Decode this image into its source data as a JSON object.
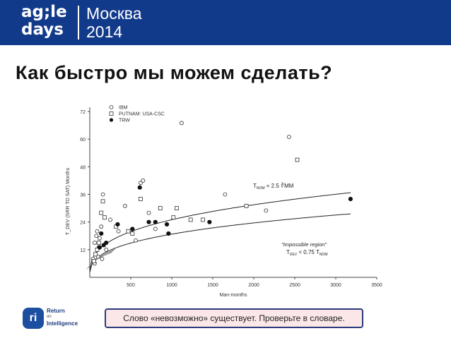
{
  "header": {
    "logo_line1": "ag;le",
    "logo_line2": "days",
    "city": "Москва",
    "year": "2014"
  },
  "slide": {
    "title": "Как быстро мы можем сделать?",
    "note": "Слово «невозможно» существует. Проверьте в словаре."
  },
  "brand": {
    "logo_mark": "ri",
    "name_line1": "Return",
    "name_line2": "on",
    "name_line3": "Intelligence"
  },
  "colors": {
    "header_bg": "#123a8a",
    "note_bg": "#fbe7e7"
  },
  "chart_data": {
    "type": "scatter",
    "xlabel": "Man-months",
    "ylabel": "T_DEV (SRR TO SAT) Months",
    "xlim": [
      0,
      3500
    ],
    "ylim": [
      0,
      72
    ],
    "xticks": [
      500,
      1000,
      1500,
      2000,
      2500,
      3000,
      3500
    ],
    "yticks": [
      12,
      24,
      36,
      48,
      60,
      72
    ],
    "grid": false,
    "legend_position": "top-left",
    "series": [
      {
        "name": "IBM",
        "marker": "open-circle",
        "points": [
          [
            1120,
            67
          ],
          [
            2430,
            61
          ],
          [
            620,
            41
          ],
          [
            650,
            42
          ],
          [
            160,
            36
          ],
          [
            430,
            31
          ],
          [
            720,
            28
          ],
          [
            800,
            21
          ],
          [
            1650,
            36
          ],
          [
            2150,
            29
          ],
          [
            60,
            15
          ],
          [
            80,
            18
          ],
          [
            90,
            20
          ],
          [
            110,
            13
          ],
          [
            120,
            17
          ],
          [
            140,
            22
          ],
          [
            200,
            12
          ],
          [
            250,
            25
          ],
          [
            350,
            20
          ],
          [
            560,
            16
          ],
          [
            40,
            8
          ],
          [
            60,
            6
          ],
          [
            100,
            9
          ],
          [
            150,
            8
          ]
        ]
      },
      {
        "name": "PUTNAM: USA-CSC",
        "marker": "open-square",
        "points": [
          [
            2530,
            51
          ],
          [
            620,
            34
          ],
          [
            860,
            30
          ],
          [
            1020,
            26
          ],
          [
            1060,
            30
          ],
          [
            1230,
            25
          ],
          [
            1380,
            25
          ],
          [
            1910,
            31
          ],
          [
            320,
            22
          ],
          [
            470,
            20
          ],
          [
            520,
            19
          ],
          [
            140,
            28
          ],
          [
            160,
            33
          ],
          [
            180,
            26
          ],
          [
            70,
            10
          ],
          [
            90,
            12
          ],
          [
            110,
            15
          ],
          [
            50,
            7
          ]
        ]
      },
      {
        "name": "TRW",
        "marker": "filled-circle",
        "points": [
          [
            3180,
            34
          ],
          [
            610,
            39
          ],
          [
            340,
            23
          ],
          [
            520,
            21
          ],
          [
            720,
            24
          ],
          [
            800,
            24
          ],
          [
            940,
            23
          ],
          [
            960,
            19
          ],
          [
            1460,
            24
          ],
          [
            140,
            19
          ],
          [
            170,
            14
          ],
          [
            200,
            15
          ],
          [
            120,
            13
          ]
        ]
      }
    ],
    "curves": [
      {
        "name": "T_NOM = 2.5 ∛MM",
        "coef": 2.5
      },
      {
        "name": "\"Impossible region\" T_DEV < 0.75 T_NOM",
        "coef": 1.875
      }
    ],
    "annotations": {
      "tnom_label": "T",
      "tnom_sub": "NOM",
      "tnom_rest": " = 2.5 ∛MM",
      "impossible_line1": "\"Impossible region\"",
      "impossible_prefix": "T",
      "impossible_sub1": "DEV",
      "impossible_mid": " < 0.75 T",
      "impossible_sub2": "NOM"
    }
  }
}
